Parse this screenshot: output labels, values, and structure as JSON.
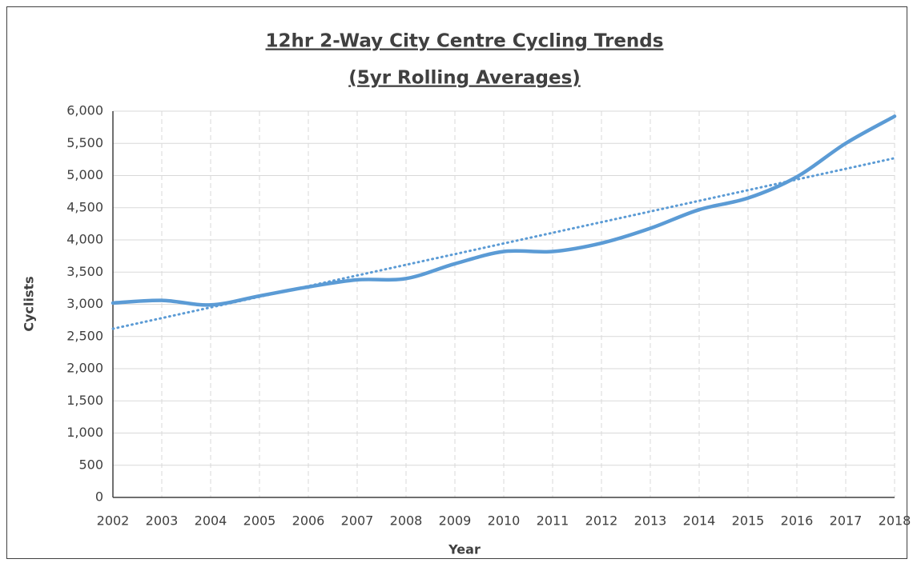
{
  "chart_data": {
    "type": "line",
    "title": "12hr 2-Way City Centre Cycling Trends",
    "subtitle": "(5yr Rolling Averages)",
    "x_label": "Year",
    "y_label": "Cyclists",
    "x": [
      2002,
      2003,
      2004,
      2005,
      2006,
      2007,
      2008,
      2009,
      2010,
      2011,
      2012,
      2013,
      2014,
      2015,
      2016,
      2017,
      2018
    ],
    "series": [
      {
        "color": "#5b9bd5",
        "values": [
          3020,
          3060,
          2990,
          3130,
          3270,
          3380,
          3400,
          3630,
          3820,
          3820,
          3950,
          4180,
          4470,
          4650,
          4980,
          5500,
          5920
        ]
      }
    ],
    "trend": {
      "x": [
        2002,
        2018
      ],
      "values": [
        2620,
        5270
      ],
      "color": "#5b9bd5"
    },
    "xlim": [
      2002,
      2018
    ],
    "xticks": [
      2002,
      2003,
      2004,
      2005,
      2006,
      2007,
      2008,
      2009,
      2010,
      2011,
      2012,
      2013,
      2014,
      2015,
      2016,
      2017,
      2018
    ],
    "ylim": [
      0,
      6000
    ],
    "yticks": [
      0,
      500,
      {
        "value": 1000,
        "label": "1,000"
      },
      {
        "value": 1500,
        "label": "1,500"
      },
      {
        "value": 2000,
        "label": "2,000"
      },
      {
        "value": 2500,
        "label": "2,500"
      },
      {
        "value": 3000,
        "label": "3,000"
      },
      {
        "value": 3500,
        "label": "3,500"
      },
      {
        "value": 4000,
        "label": "4,000"
      },
      {
        "value": 4500,
        "label": "4,500"
      },
      {
        "value": 5000,
        "label": "5,000"
      },
      {
        "value": 5500,
        "label": "5,500"
      },
      {
        "value": 6000,
        "label": "6,000"
      }
    ],
    "grid": true
  }
}
